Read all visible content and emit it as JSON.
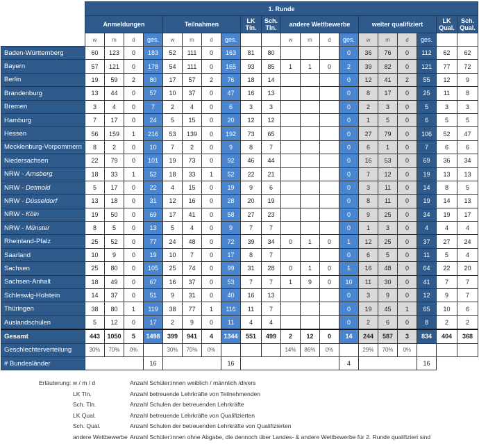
{
  "header": {
    "title": "1. Runde",
    "groups": {
      "anmeldungen": "Anmeldungen",
      "teilnahmen": "Teilnahmen",
      "lk_tln": "LK Tln.",
      "sch_tln": "Sch. Tln.",
      "andere": "andere Wettbewerbe",
      "weiter": "weiter qualifiziert",
      "lk_qual": "LK Qual.",
      "sch_qual": "Sch. Qual."
    },
    "sub": [
      "w",
      "m",
      "d",
      "ges."
    ]
  },
  "colors": {
    "dark_blue": "#2f5a8c",
    "bright_blue": "#4a86d0",
    "gray": "#d9d9d9"
  },
  "rows": [
    {
      "name": "Baden-Württemberg",
      "anm": [
        60,
        123,
        0,
        183
      ],
      "teil": [
        52,
        111,
        0,
        163
      ],
      "lk_tln": 81,
      "sch_tln": 80,
      "andere": [
        "",
        "",
        "",
        0
      ],
      "weiter": [
        36,
        76,
        0,
        112
      ],
      "lk_qual": 62,
      "sch_qual": 62
    },
    {
      "name": "Bayern",
      "anm": [
        57,
        121,
        0,
        178
      ],
      "teil": [
        54,
        111,
        0,
        165
      ],
      "lk_tln": 93,
      "sch_tln": 85,
      "andere": [
        1,
        1,
        0,
        2
      ],
      "weiter": [
        39,
        82,
        0,
        121
      ],
      "lk_qual": 77,
      "sch_qual": 72
    },
    {
      "name": "Berlin",
      "anm": [
        19,
        59,
        2,
        80
      ],
      "teil": [
        17,
        57,
        2,
        76
      ],
      "lk_tln": 18,
      "sch_tln": 14,
      "andere": [
        "",
        "",
        "",
        0
      ],
      "weiter": [
        12,
        41,
        2,
        55
      ],
      "lk_qual": 12,
      "sch_qual": 9
    },
    {
      "name": "Brandenburg",
      "anm": [
        13,
        44,
        0,
        57
      ],
      "teil": [
        10,
        37,
        0,
        47
      ],
      "lk_tln": 16,
      "sch_tln": 13,
      "andere": [
        "",
        "",
        "",
        0
      ],
      "weiter": [
        8,
        17,
        0,
        25
      ],
      "lk_qual": 11,
      "sch_qual": 8
    },
    {
      "name": "Bremen",
      "anm": [
        3,
        4,
        0,
        7
      ],
      "teil": [
        2,
        4,
        0,
        6
      ],
      "lk_tln": 3,
      "sch_tln": 3,
      "andere": [
        "",
        "",
        "",
        0
      ],
      "weiter": [
        2,
        3,
        0,
        5
      ],
      "lk_qual": 3,
      "sch_qual": 3
    },
    {
      "name": "Hamburg",
      "anm": [
        7,
        17,
        0,
        24
      ],
      "teil": [
        5,
        15,
        0,
        20
      ],
      "lk_tln": 12,
      "sch_tln": 12,
      "andere": [
        "",
        "",
        "",
        0
      ],
      "weiter": [
        1,
        5,
        0,
        6
      ],
      "lk_qual": 5,
      "sch_qual": 5
    },
    {
      "name": "Hessen",
      "anm": [
        56,
        159,
        1,
        216
      ],
      "teil": [
        53,
        139,
        0,
        192
      ],
      "lk_tln": 73,
      "sch_tln": 65,
      "andere": [
        "",
        "",
        "",
        0
      ],
      "weiter": [
        27,
        79,
        0,
        106
      ],
      "lk_qual": 52,
      "sch_qual": 47
    },
    {
      "name": "Mecklenburg-Vorpommern",
      "anm": [
        8,
        2,
        0,
        10
      ],
      "teil": [
        7,
        2,
        0,
        9
      ],
      "lk_tln": 8,
      "sch_tln": 7,
      "andere": [
        "",
        "",
        "",
        0
      ],
      "weiter": [
        6,
        1,
        0,
        7
      ],
      "lk_qual": 6,
      "sch_qual": 6
    },
    {
      "name": "Niedersachsen",
      "anm": [
        22,
        79,
        0,
        101
      ],
      "teil": [
        19,
        73,
        0,
        92
      ],
      "lk_tln": 46,
      "sch_tln": 44,
      "andere": [
        "",
        "",
        "",
        0
      ],
      "weiter": [
        16,
        53,
        0,
        69
      ],
      "lk_qual": 36,
      "sch_qual": 34
    },
    {
      "name": "NRW - ",
      "region": "Arnsberg",
      "anm": [
        18,
        33,
        1,
        52
      ],
      "teil": [
        18,
        33,
        1,
        52
      ],
      "lk_tln": 22,
      "sch_tln": 21,
      "andere": [
        "",
        "",
        "",
        0
      ],
      "weiter": [
        7,
        12,
        0,
        19
      ],
      "lk_qual": 13,
      "sch_qual": 13
    },
    {
      "name": "NRW - ",
      "region": "Detmold",
      "anm": [
        5,
        17,
        0,
        22
      ],
      "teil": [
        4,
        15,
        0,
        19
      ],
      "lk_tln": 9,
      "sch_tln": 6,
      "andere": [
        "",
        "",
        "",
        0
      ],
      "weiter": [
        3,
        11,
        0,
        14
      ],
      "lk_qual": 8,
      "sch_qual": 5
    },
    {
      "name": "NRW - ",
      "region": "Düsseldorf",
      "anm": [
        13,
        18,
        0,
        31
      ],
      "teil": [
        12,
        16,
        0,
        28
      ],
      "lk_tln": 20,
      "sch_tln": 19,
      "andere": [
        "",
        "",
        "",
        0
      ],
      "weiter": [
        8,
        11,
        0,
        19
      ],
      "lk_qual": 14,
      "sch_qual": 13
    },
    {
      "name": "NRW - ",
      "region": "Köln",
      "anm": [
        19,
        50,
        0,
        69
      ],
      "teil": [
        17,
        41,
        0,
        58
      ],
      "lk_tln": 27,
      "sch_tln": 23,
      "andere": [
        "",
        "",
        "",
        0
      ],
      "weiter": [
        9,
        25,
        0,
        34
      ],
      "lk_qual": 19,
      "sch_qual": 17
    },
    {
      "name": "NRW - ",
      "region": "Münster",
      "anm": [
        8,
        5,
        0,
        13
      ],
      "teil": [
        5,
        4,
        0,
        9
      ],
      "lk_tln": 7,
      "sch_tln": 7,
      "andere": [
        "",
        "",
        "",
        0
      ],
      "weiter": [
        1,
        3,
        0,
        4
      ],
      "lk_qual": 4,
      "sch_qual": 4
    },
    {
      "name": "Rheinland-Pfalz",
      "anm": [
        25,
        52,
        0,
        77
      ],
      "teil": [
        24,
        48,
        0,
        72
      ],
      "lk_tln": 39,
      "sch_tln": 34,
      "andere": [
        0,
        1,
        0,
        1
      ],
      "weiter": [
        12,
        25,
        0,
        37
      ],
      "lk_qual": 27,
      "sch_qual": 24
    },
    {
      "name": "Saarland",
      "anm": [
        10,
        9,
        0,
        19
      ],
      "teil": [
        10,
        7,
        0,
        17
      ],
      "lk_tln": 8,
      "sch_tln": 7,
      "andere": [
        "",
        "",
        "",
        0
      ],
      "weiter": [
        6,
        5,
        0,
        11
      ],
      "lk_qual": 5,
      "sch_qual": 4
    },
    {
      "name": "Sachsen",
      "anm": [
        25,
        80,
        0,
        105
      ],
      "teil": [
        25,
        74,
        0,
        99
      ],
      "lk_tln": 31,
      "sch_tln": 28,
      "andere": [
        0,
        1,
        0,
        1
      ],
      "weiter": [
        16,
        48,
        0,
        64
      ],
      "lk_qual": 22,
      "sch_qual": 20
    },
    {
      "name": "Sachsen-Anhalt",
      "anm": [
        18,
        49,
        0,
        67
      ],
      "teil": [
        16,
        37,
        0,
        53
      ],
      "lk_tln": 7,
      "sch_tln": 7,
      "andere": [
        1,
        9,
        0,
        10
      ],
      "weiter": [
        11,
        30,
        0,
        41
      ],
      "lk_qual": 7,
      "sch_qual": 7
    },
    {
      "name": "Schleswig-Holstein",
      "anm": [
        14,
        37,
        0,
        51
      ],
      "teil": [
        9,
        31,
        0,
        40
      ],
      "lk_tln": 16,
      "sch_tln": 13,
      "andere": [
        "",
        "",
        "",
        0
      ],
      "weiter": [
        3,
        9,
        0,
        12
      ],
      "lk_qual": 9,
      "sch_qual": 7
    },
    {
      "name": "Thüringen",
      "anm": [
        38,
        80,
        1,
        119
      ],
      "teil": [
        38,
        77,
        1,
        116
      ],
      "lk_tln": 11,
      "sch_tln": 7,
      "andere": [
        "",
        "",
        "",
        0
      ],
      "weiter": [
        19,
        45,
        1,
        65
      ],
      "lk_qual": 10,
      "sch_qual": 6
    },
    {
      "name": "Auslandschulen",
      "anm": [
        5,
        12,
        0,
        17
      ],
      "teil": [
        2,
        9,
        0,
        11
      ],
      "lk_tln": 4,
      "sch_tln": 4,
      "andere": [
        "",
        "",
        "",
        0
      ],
      "weiter": [
        2,
        6,
        0,
        8
      ],
      "lk_qual": 2,
      "sch_qual": 2
    }
  ],
  "total": {
    "name": "Gesamt",
    "anm": [
      443,
      1050,
      5,
      1498
    ],
    "teil": [
      399,
      941,
      4,
      1344
    ],
    "lk_tln": 551,
    "sch_tln": 499,
    "andere": [
      2,
      12,
      0,
      14
    ],
    "weiter": [
      244,
      587,
      3,
      834
    ],
    "lk_qual": 404,
    "sch_qual": 368
  },
  "gender": {
    "name": "Geschlechterverteilung",
    "anm": [
      "30%",
      "70%",
      "0%",
      ""
    ],
    "teil": [
      "30%",
      "70%",
      "0%",
      ""
    ],
    "lk_tln": "",
    "sch_tln": "",
    "andere": [
      "14%",
      "86%",
      "0%",
      ""
    ],
    "weiter": [
      "29%",
      "70%",
      "0%",
      ""
    ],
    "lk_qual": "",
    "sch_qual": ""
  },
  "states": {
    "name": "# Bundesländer",
    "anm": "16",
    "teil": "16",
    "andere": "4",
    "weiter": "16"
  },
  "legend": {
    "intro": "Erläuterung:",
    "items": [
      {
        "term": "w / m / d",
        "desc": "Anzahl Schüler:innen weiblich / männlich /divers"
      },
      {
        "term": "LK Tln.",
        "desc": "Anzahl betreuende Lehrkräfte von Teilnehmenden"
      },
      {
        "term": "Sch. Tln.",
        "desc": "Anzahl Schulen der betreuenden Lehrkräfte"
      },
      {
        "term": "LK Qual.",
        "desc": "Anzahl betreuende Lehrkräfte von Qualifizierten"
      },
      {
        "term": "Sch. Qual.",
        "desc": "Anzahl Schulen der betreuenden Lehrkräfte von Qualifizierten"
      },
      {
        "term": "andere Wettbewerbe",
        "desc": "Anzahl Schüler:innen ohne Abgabe, die dennoch über Landes- & andere Wettbewerbe für 2. Runde qualifiziert sind"
      }
    ]
  }
}
